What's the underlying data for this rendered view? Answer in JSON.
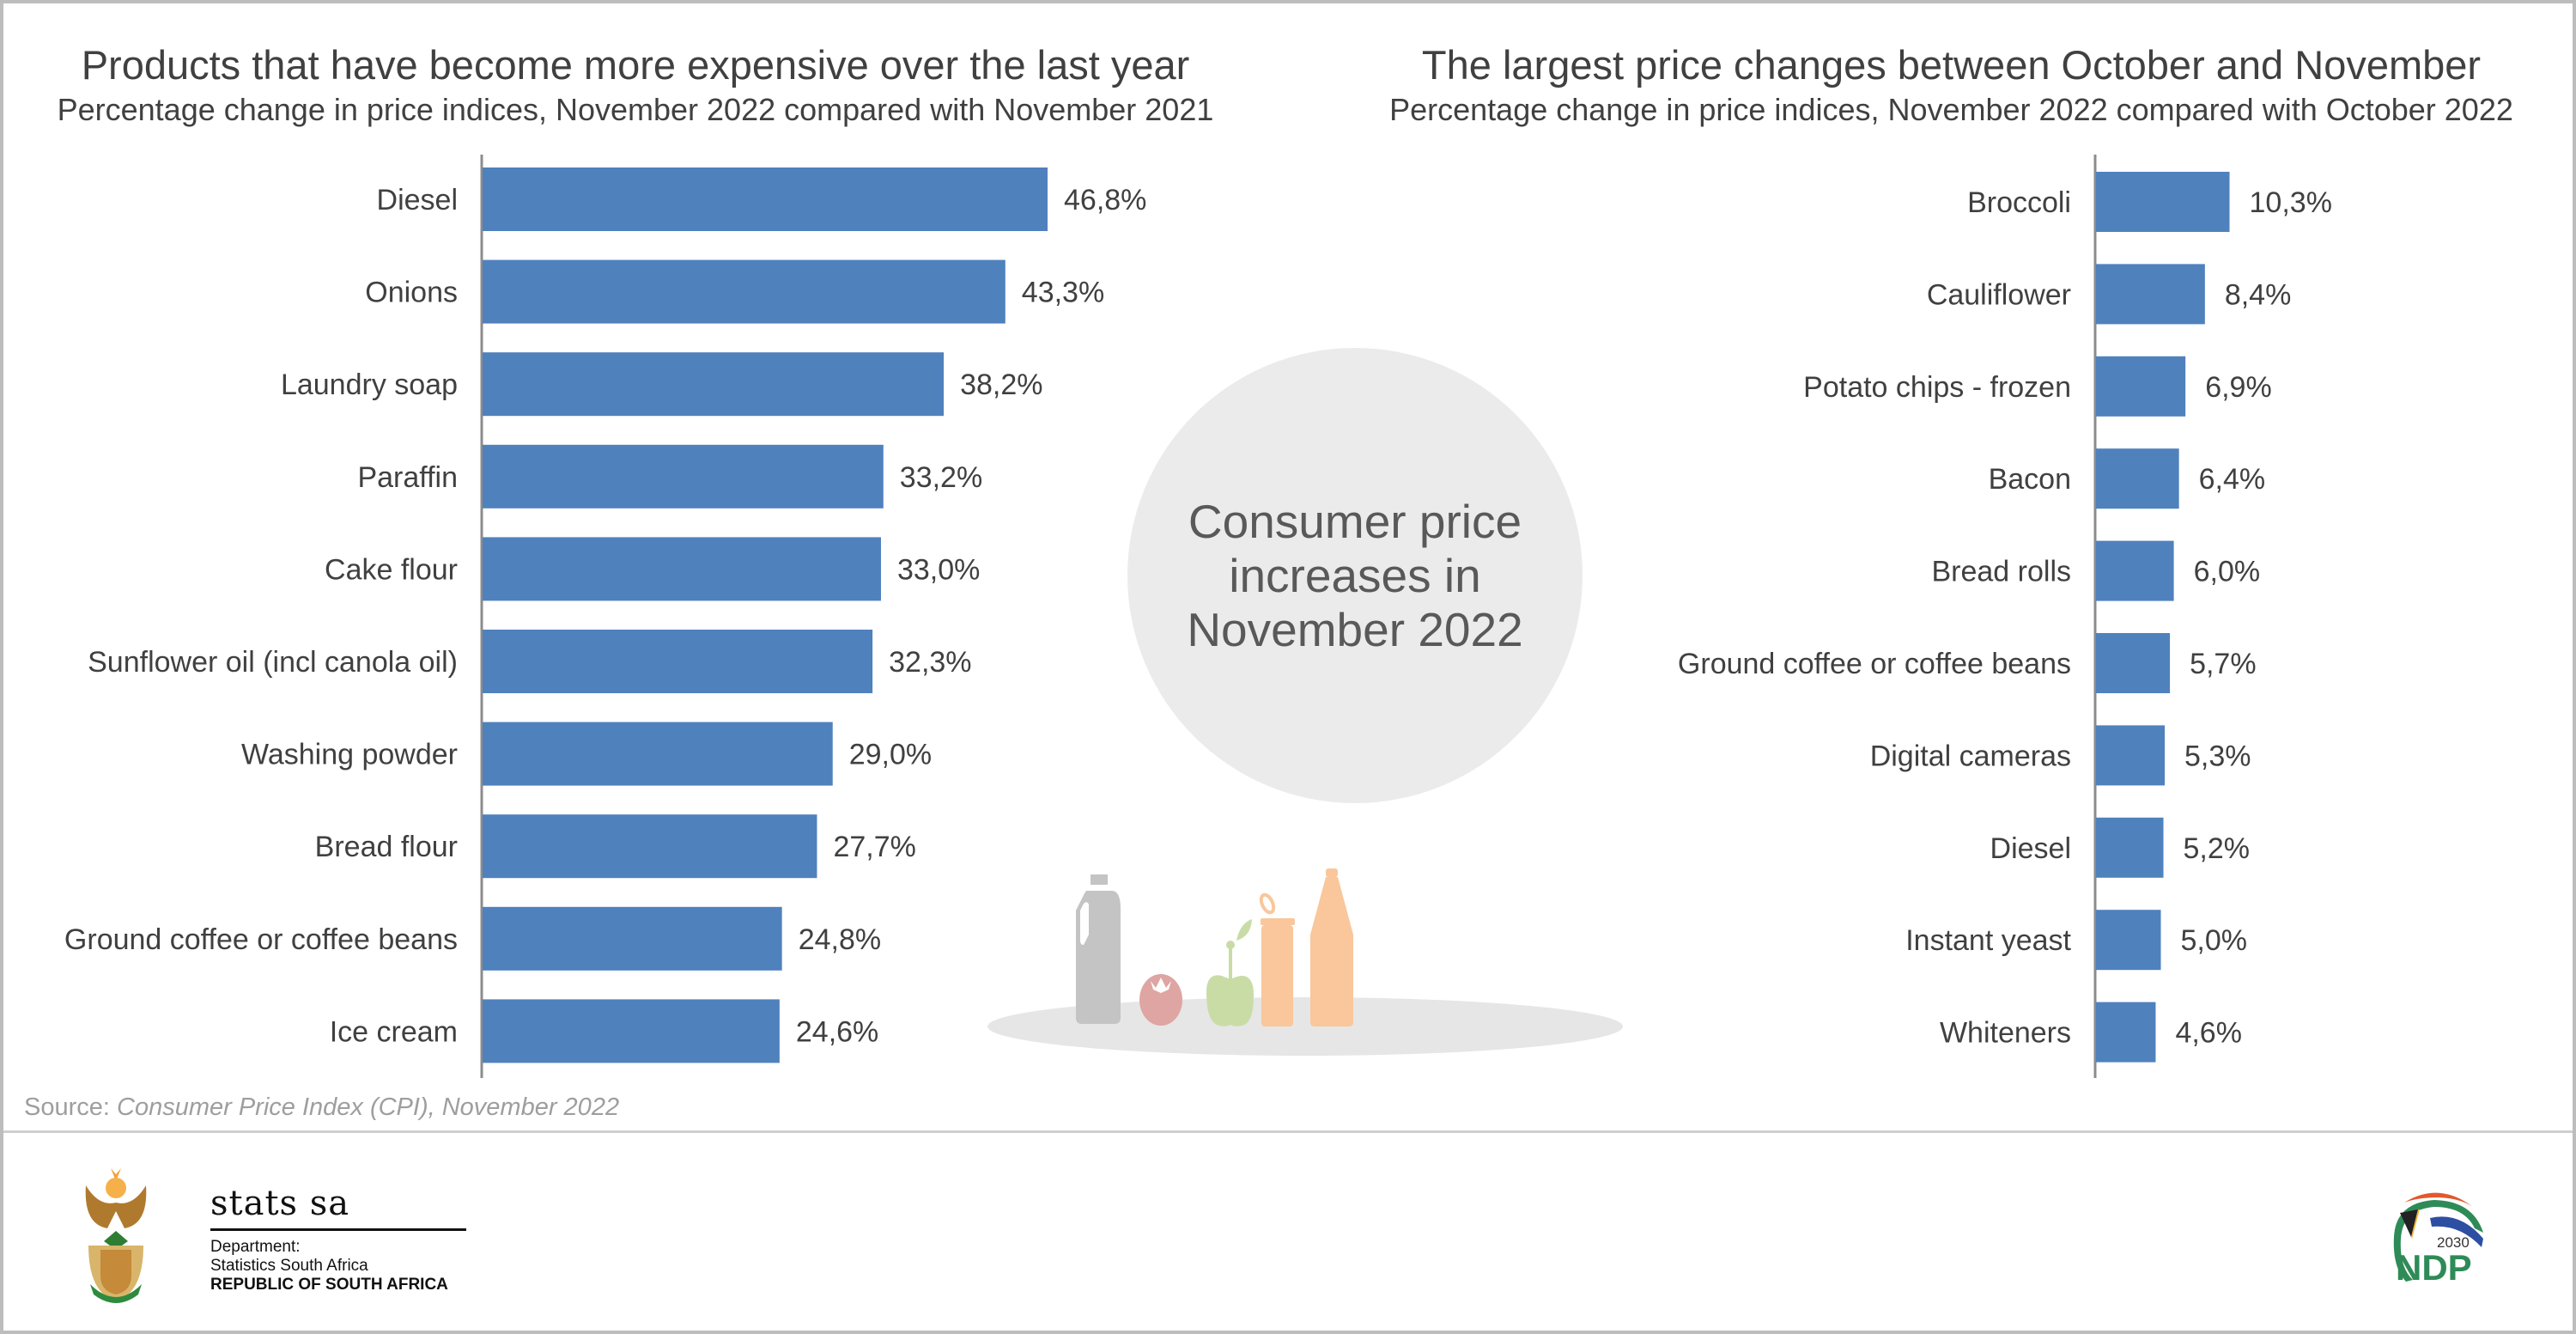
{
  "chart_data": [
    {
      "type": "bar",
      "orientation": "horizontal",
      "title": "Products that have become more expensive over the last year",
      "subtitle": "Percentage change in price indices, November 2022 compared with November 2021",
      "categories": [
        "Diesel",
        "Onions",
        "Laundry soap",
        "Paraffin",
        "Cake flour",
        "Sunflower oil (incl canola oil)",
        "Washing powder",
        "Bread flour",
        "Ground coffee or coffee beans",
        "Ice cream"
      ],
      "values": [
        46.8,
        43.3,
        38.2,
        33.2,
        33.0,
        32.3,
        29.0,
        27.7,
        24.8,
        24.6
      ],
      "labels": [
        "46,8%",
        "43,3%",
        "38,2%",
        "33,2%",
        "33,0%",
        "32,3%",
        "29,0%",
        "27,7%",
        "24,8%",
        "24,6%"
      ],
      "xlabel": "",
      "ylabel": "",
      "xlim": [
        0,
        50
      ],
      "grid": false,
      "legend": "none",
      "bar_color": "#4f81bd"
    },
    {
      "type": "bar",
      "orientation": "horizontal",
      "title": "The largest price changes between October and November",
      "subtitle": "Percentage change in price indices, November 2022 compared with October 2022",
      "categories": [
        "Broccoli",
        "Cauliflower",
        "Potato chips - frozen",
        "Bacon",
        "Bread rolls",
        "Ground coffee or coffee beans",
        "Digital cameras",
        "Diesel",
        "Instant yeast",
        "Whiteners"
      ],
      "values": [
        10.3,
        8.4,
        6.9,
        6.4,
        6.0,
        5.7,
        5.3,
        5.2,
        5.0,
        4.6
      ],
      "labels": [
        "10,3%",
        "8,4%",
        "6,9%",
        "6,4%",
        "6,0%",
        "5,7%",
        "5,3%",
        "5,2%",
        "5,0%",
        "4,6%"
      ],
      "xlabel": "",
      "ylabel": "",
      "xlim": [
        0,
        12
      ],
      "grid": false,
      "legend": "none",
      "bar_color": "#4f81bd"
    }
  ],
  "center": {
    "line1": "Consumer price",
    "line2": "increases in",
    "line3": "November 2022"
  },
  "source": {
    "prefix": "Source: ",
    "text": "Consumer Price Index (CPI), November 2022"
  },
  "footer": {
    "logo_name": "stats sa",
    "dept_label": "Department:",
    "dept_name": "Statistics South Africa",
    "country": "REPUBLIC OF SOUTH AFRICA",
    "ndp_year": "2030",
    "ndp_text": "NDP"
  },
  "colors": {
    "bar": "#4f81bd",
    "text": "#404040",
    "circle": "#ebebeb"
  }
}
